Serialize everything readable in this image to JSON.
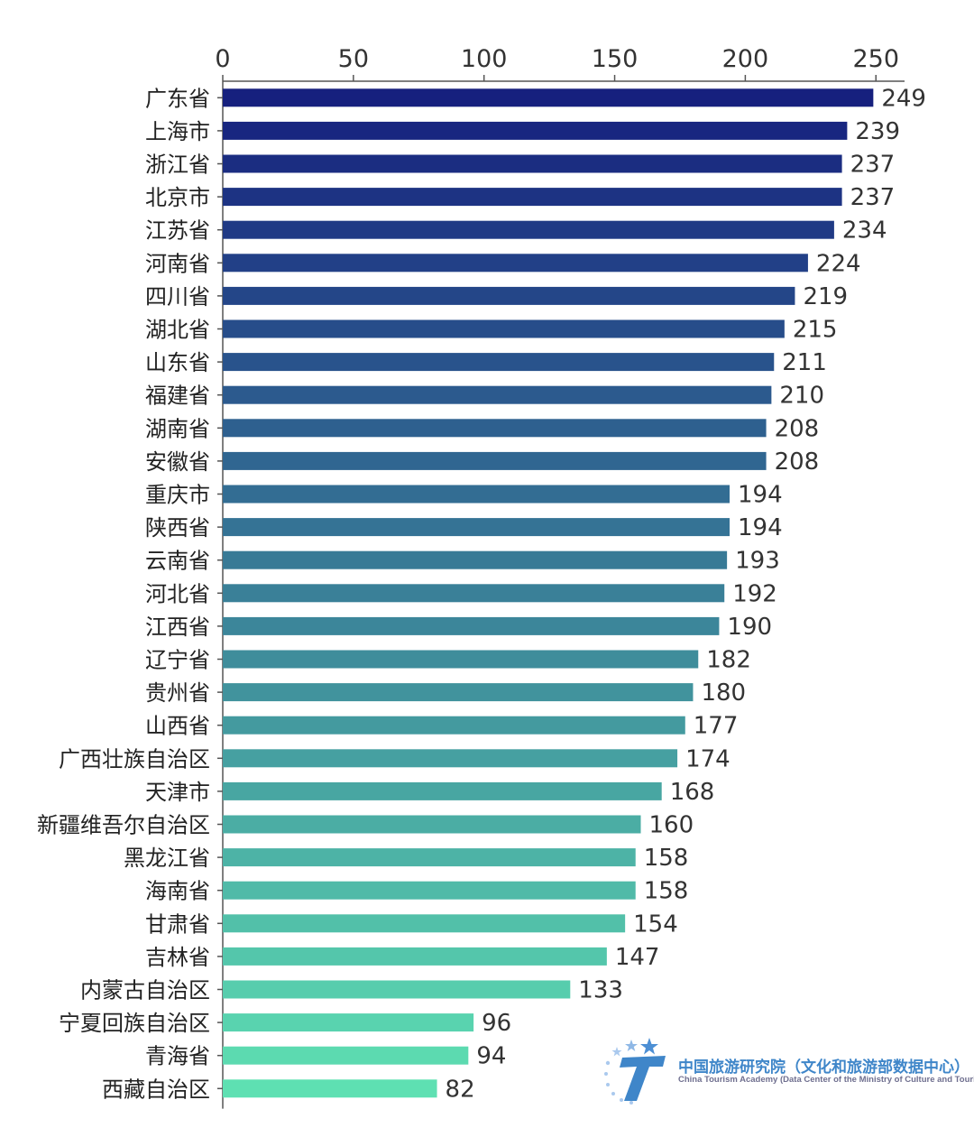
{
  "chart_data": {
    "type": "bar",
    "orientation": "horizontal",
    "categories": [
      "广东省",
      "上海市",
      "浙江省",
      "北京市",
      "江苏省",
      "河南省",
      "四川省",
      "湖北省",
      "山东省",
      "福建省",
      "湖南省",
      "安徽省",
      "重庆市",
      "陕西省",
      "云南省",
      "河北省",
      "江西省",
      "辽宁省",
      "贵州省",
      "山西省",
      "广西壮族自治区",
      "天津市",
      "新疆维吾尔自治区",
      "黑龙江省",
      "海南省",
      "甘肃省",
      "吉林省",
      "内蒙古自治区",
      "宁夏回族自治区",
      "青海省",
      "西藏自治区"
    ],
    "values": [
      249,
      239,
      237,
      237,
      234,
      224,
      219,
      215,
      211,
      210,
      208,
      208,
      194,
      194,
      193,
      192,
      190,
      182,
      180,
      177,
      174,
      168,
      160,
      158,
      158,
      154,
      147,
      133,
      96,
      94,
      82
    ],
    "xlim": [
      0,
      260
    ],
    "xticks": [
      0,
      50,
      100,
      150,
      200,
      250
    ],
    "x_axis_position": "top",
    "grid": false,
    "legend": "none",
    "color_gradient": [
      "#16207e",
      "#5ee0b2"
    ]
  },
  "logo": {
    "cn_text": "中国旅游研究院（文化和旅游部数据中心）",
    "en_text": "China Tourism Academy (Data Center of the Ministry of Culture and Tourism)"
  }
}
